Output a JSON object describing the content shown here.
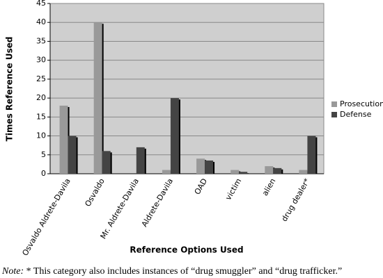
{
  "chart_data": {
    "type": "bar",
    "y_label": "Times Reference Used",
    "x_label": "Reference Options Used",
    "categories": [
      "Osvaldo Aldrete-Davila",
      "Osvaldo",
      "Mr. Aldrete-Davila",
      "Aldrete-Davila",
      "OAD",
      "victim",
      "alien",
      "drug dealer*"
    ],
    "series": [
      {
        "name": "Prosecution",
        "color": "#999999",
        "values": [
          18,
          40,
          0,
          1,
          4,
          1,
          2,
          1
        ]
      },
      {
        "name": "Defense",
        "color": "#444444",
        "values": [
          10,
          6,
          7,
          20,
          3.5,
          0.5,
          1.5,
          10
        ]
      }
    ],
    "ylim": [
      0,
      45
    ],
    "yticks": [
      0,
      5,
      10,
      15,
      20,
      25,
      30,
      35,
      40,
      45
    ],
    "grid": true,
    "legend": "right",
    "note_label": "Note:",
    "note": "* This category also includes instances of “drug smuggler” and “drug trafficker.”"
  }
}
